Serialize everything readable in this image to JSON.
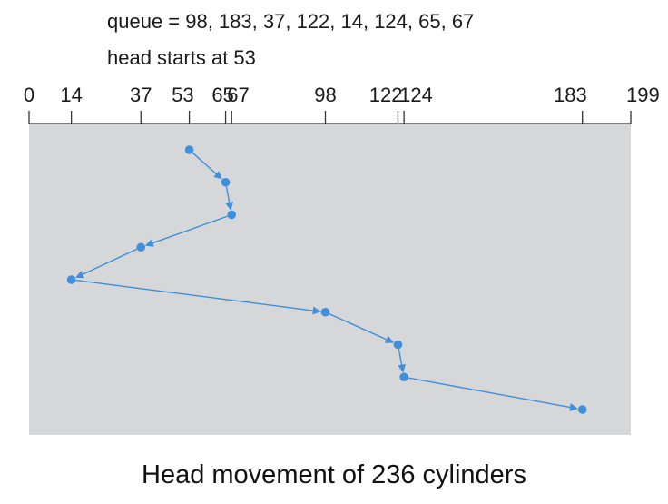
{
  "header": {
    "queue_text": "queue = 98, 183, 37, 122, 14, 124, 65, 67",
    "head_text": "head starts at 53"
  },
  "axis": {
    "ticks": [
      0,
      14,
      37,
      53,
      65,
      67,
      98,
      122,
      124,
      183,
      199
    ],
    "tick_labels": [
      "0",
      "14",
      "37",
      "53",
      "65",
      "67",
      "98",
      "122",
      "124",
      "183",
      "199"
    ]
  },
  "diagram_data": {
    "type": "disk-head-movement",
    "range": [
      0,
      199
    ],
    "path": [
      53,
      65,
      67,
      37,
      14,
      98,
      122,
      124,
      183
    ]
  },
  "colors": {
    "panel": "#d6d7d9",
    "path": "#3f8fdc",
    "axis": "#333333"
  },
  "caption": "Head movement of 236 cylinders"
}
